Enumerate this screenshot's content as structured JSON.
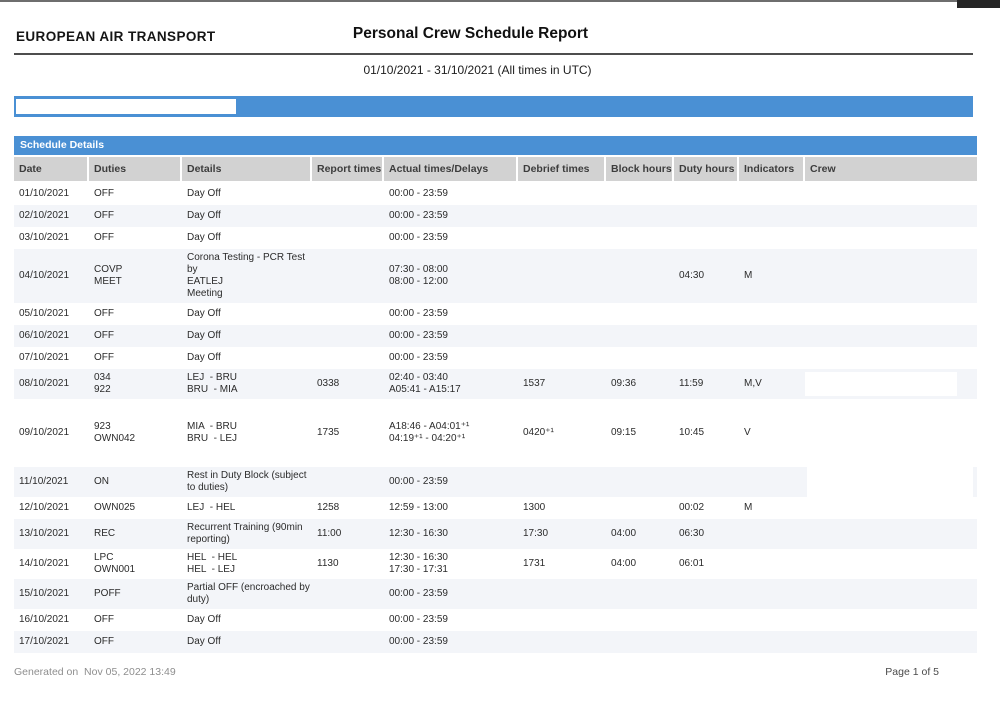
{
  "page": {
    "company": "EUROPEAN AIR TRANSPORT",
    "title": "Personal Crew Schedule Report",
    "subtitle": "01/10/2021 - 31/10/2021 (All times in UTC)",
    "section_header": "Schedule Details",
    "generated_on": "Generated on  Nov 05, 2022 13:49",
    "page_indicator": "Page 1 of 5"
  },
  "colors": {
    "accent_blue": "#4a90d4",
    "column_header_gray": "#d2d2d2",
    "alt_row": "#f3f5f9"
  },
  "table": {
    "columns": [
      "Date",
      "Duties",
      "Details",
      "Report times",
      "Actual times/Delays",
      "Debrief times",
      "Block hours",
      "Duty hours",
      "Indicators",
      "Crew"
    ],
    "rows": [
      {
        "date": "01/10/2021",
        "duties": "OFF",
        "details": "Day Off",
        "report": "",
        "actual": "00:00 - 23:59",
        "debrief": "",
        "block": "",
        "duty": "",
        "indicators": "",
        "crew": ""
      },
      {
        "date": "02/10/2021",
        "duties": "OFF",
        "details": "Day Off",
        "report": "",
        "actual": "00:00 - 23:59",
        "debrief": "",
        "block": "",
        "duty": "",
        "indicators": "",
        "crew": ""
      },
      {
        "date": "03/10/2021",
        "duties": "OFF",
        "details": "Day Off",
        "report": "",
        "actual": "00:00 - 23:59",
        "debrief": "",
        "block": "",
        "duty": "",
        "indicators": "",
        "crew": ""
      },
      {
        "date": "04/10/2021",
        "duties": "COVP\nMEET",
        "details": "Corona Testing - PCR Test by\nEATLEJ\nMeeting",
        "report": "",
        "actual": "07:30 - 08:00\n08:00 - 12:00",
        "debrief": "",
        "block": "",
        "duty": "04:30",
        "indicators": "M",
        "crew": ""
      },
      {
        "date": "05/10/2021",
        "duties": "OFF",
        "details": "Day Off",
        "report": "",
        "actual": "00:00 - 23:59",
        "debrief": "",
        "block": "",
        "duty": "",
        "indicators": "",
        "crew": ""
      },
      {
        "date": "06/10/2021",
        "duties": "OFF",
        "details": "Day Off",
        "report": "",
        "actual": "00:00 - 23:59",
        "debrief": "",
        "block": "",
        "duty": "",
        "indicators": "",
        "crew": ""
      },
      {
        "date": "07/10/2021",
        "duties": "OFF",
        "details": "Day Off",
        "report": "",
        "actual": "00:00 - 23:59",
        "debrief": "",
        "block": "",
        "duty": "",
        "indicators": "",
        "crew": ""
      },
      {
        "date": "08/10/2021",
        "duties": "034\n922",
        "details": "LEJ  - BRU\nBRU  - MIA",
        "report": "0338",
        "actual": "02:40 - 03:40\nA05:41 - A15:17",
        "debrief": "1537",
        "block": "09:36",
        "duty": "11:59",
        "indicators": "M,V",
        "crew": "",
        "crew_redaction": "partial"
      },
      {
        "date": "09/10/2021",
        "duties": "923\nOWN042",
        "details": "MIA  - BRU\nBRU  - LEJ",
        "report": "1735",
        "actual": "A18:46 - A04:01⁺¹\n04:19⁺¹ - 04:20⁺¹",
        "debrief": "0420⁺¹",
        "block": "09:15",
        "duty": "10:45",
        "indicators": "V",
        "crew": "",
        "tall": true
      },
      {
        "date": "11/10/2021",
        "duties": "ON",
        "details": "Rest in Duty Block (subject\nto duties)",
        "report": "",
        "actual": "00:00 - 23:59",
        "debrief": "",
        "block": "",
        "duty": "",
        "indicators": "",
        "crew": "",
        "crew_redaction": "full"
      },
      {
        "date": "12/10/2021",
        "duties": "OWN025",
        "details": "LEJ  - HEL",
        "report": "1258",
        "actual": "12:59 - 13:00",
        "debrief": "1300",
        "block": "",
        "duty": "00:02",
        "indicators": "M",
        "crew": ""
      },
      {
        "date": "13/10/2021",
        "duties": "REC",
        "details": "Recurrent Training (90min\nreporting)",
        "report": "11:00",
        "actual": "12:30 - 16:30",
        "debrief": "17:30",
        "block": "04:00",
        "duty": "06:30",
        "indicators": "",
        "crew": ""
      },
      {
        "date": "14/10/2021",
        "duties": "LPC\nOWN001",
        "details": "HEL  - HEL\nHEL  - LEJ",
        "report": "1130",
        "actual": "12:30 - 16:30\n17:30 - 17:31",
        "debrief": "1731",
        "block": "04:00",
        "duty": "06:01",
        "indicators": "",
        "crew": ""
      },
      {
        "date": "15/10/2021",
        "duties": "POFF",
        "details": "Partial OFF (encroached by\nduty)",
        "report": "",
        "actual": "00:00 - 23:59",
        "debrief": "",
        "block": "",
        "duty": "",
        "indicators": "",
        "crew": ""
      },
      {
        "date": "16/10/2021",
        "duties": "OFF",
        "details": "Day Off",
        "report": "",
        "actual": "00:00 - 23:59",
        "debrief": "",
        "block": "",
        "duty": "",
        "indicators": "",
        "crew": ""
      },
      {
        "date": "17/10/2021",
        "duties": "OFF",
        "details": "Day Off",
        "report": "",
        "actual": "00:00 - 23:59",
        "debrief": "",
        "block": "",
        "duty": "",
        "indicators": "",
        "crew": ""
      }
    ]
  }
}
